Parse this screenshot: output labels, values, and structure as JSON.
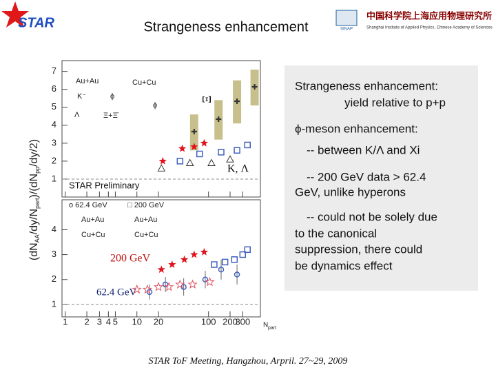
{
  "header": {
    "logo": "STAR",
    "title": "Strangeness enhancement",
    "institute_cn": "中国科学院上海应用物理研究所",
    "institute_en": "Shanghai Institute of Applied Physics, Chinese Academy of Sciences",
    "institute_abbr": "SINAP"
  },
  "figure": {
    "ylabel": [
      "(dN",
      "AA",
      "/dy/N",
      "part",
      ")/(dN",
      "pp",
      "/dy/2)"
    ],
    "xlabel": "N",
    "xlabel_sub": "part",
    "xlim": [
      0.9,
      530
    ],
    "log_x": true,
    "xticks": [
      1,
      2,
      3,
      4,
      5,
      10,
      20,
      100,
      200,
      300
    ],
    "top": {
      "ylim": [
        0,
        7.6
      ],
      "yticks": [
        1,
        2,
        3,
        4,
        5,
        6,
        7
      ],
      "labels": [
        "Au+Au",
        "Cu+Cu",
        "K⁻",
        "ϕ",
        "ϕ",
        "Λ",
        "Ξ+Ξ̄",
        "Ξ",
        "K, Λ",
        "STAR Preliminary"
      ],
      "series": [
        {
          "marker": "bar",
          "color": "#c8c08c",
          "x": [
            63,
            138,
            250,
            440
          ],
          "values": [
            3.6,
            4.3,
            5.3,
            6.1
          ],
          "errors": [
            1.0,
            1.1,
            1.2,
            1.0
          ]
        },
        {
          "marker": "star",
          "color": "#e0141e",
          "x": [
            23,
            43,
            63,
            87
          ],
          "values": [
            2.0,
            2.7,
            2.8,
            3.0
          ]
        },
        {
          "marker": "square",
          "color": "#4060c0",
          "x": [
            40,
            75,
            150,
            250,
            350
          ],
          "values": [
            2.0,
            2.4,
            2.5,
            2.6,
            2.9
          ]
        },
        {
          "marker": "triangle",
          "color": "#333333",
          "x": [
            22,
            55,
            110,
            200
          ],
          "values": [
            1.6,
            1.9,
            1.9,
            2.1
          ]
        }
      ]
    },
    "bottom": {
      "ylim": [
        0.5,
        5.2
      ],
      "yticks": [
        1,
        2,
        3,
        4
      ],
      "labels": [
        "o 62.4 GeV",
        "□ 200 GeV",
        "Au+Au",
        "Au+Au",
        "Cu+Cu",
        "Cu+Cu",
        "200 GeV",
        "62.4 GeV"
      ],
      "series": [
        {
          "marker": "circle",
          "color": "#4060c0",
          "x": [
            15,
            25,
            45,
            90,
            150,
            250
          ],
          "values": [
            1.5,
            1.8,
            1.7,
            2.0,
            2.4,
            2.2
          ],
          "errors": [
            0.3,
            0.3,
            0.35,
            0.35,
            0.4,
            0.4
          ]
        },
        {
          "marker": "square",
          "color": "#4060c0",
          "x": [
            120,
            170,
            230,
            300,
            350
          ],
          "values": [
            2.6,
            2.7,
            2.8,
            3.0,
            3.2
          ]
        },
        {
          "marker": "star",
          "color": "#e0141e",
          "x": [
            22,
            31,
            46,
            63,
            87
          ],
          "values": [
            2.4,
            2.6,
            2.8,
            3.0,
            3.1
          ]
        },
        {
          "marker": "ostar",
          "color": "#e05060",
          "x": [
            10,
            14,
            20,
            28,
            40,
            60,
            104
          ],
          "values": [
            1.6,
            1.6,
            1.7,
            1.7,
            1.8,
            1.8,
            1.9
          ]
        }
      ]
    }
  },
  "notes": [
    "Strangeness enhancement:",
    "yield relative to p+p",
    "ϕ-meson enhancement:",
    "-- between K/Λ and Xi",
    "-- 200 GeV data > 62.4",
    "GeV, unlike hyperons",
    "-- could not be solely due",
    "to the canonical",
    "suppression, there could",
    "be dynamics effect"
  ],
  "footer": "STAR ToF Meeting, Hangzhou, Arpril. 27~29, 2009"
}
